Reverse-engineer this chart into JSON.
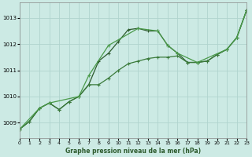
{
  "title": "Graphe pression niveau de la mer (hPa)",
  "bg_color": "#cceae4",
  "grid_color": "#b0d4ce",
  "line_color1": "#2d5a2d",
  "line_color2": "#3a7a3a",
  "line_color3": "#4a9a4a",
  "xmin": 0,
  "xmax": 23,
  "ymin": 1008.4,
  "ymax": 1013.6,
  "yticks": [
    1009,
    1010,
    1011,
    1012,
    1013
  ],
  "xticks": [
    0,
    1,
    2,
    3,
    4,
    5,
    6,
    7,
    8,
    9,
    10,
    11,
    12,
    13,
    14,
    15,
    16,
    17,
    18,
    19,
    20,
    21,
    22,
    23
  ],
  "s1_x": [
    0,
    1,
    2,
    3,
    4,
    5,
    6,
    7,
    8,
    9,
    10,
    11,
    12,
    13,
    14,
    15,
    16,
    17,
    18,
    19,
    20,
    21,
    22,
    23
  ],
  "s1_y": [
    1008.75,
    1009.05,
    1009.55,
    1009.75,
    1009.5,
    1009.8,
    1010.0,
    1010.45,
    1011.35,
    1011.65,
    1012.1,
    1012.55,
    1012.6,
    1012.5,
    1012.5,
    1011.95,
    1011.65,
    1011.3,
    1011.3,
    1011.35,
    1011.6,
    1011.8,
    1012.25,
    1013.3
  ],
  "s2_x": [
    0,
    1,
    2,
    3,
    4,
    5,
    6,
    7,
    8,
    9,
    10,
    11,
    12,
    13,
    14,
    15,
    16,
    17,
    18,
    19,
    20,
    21,
    22,
    23
  ],
  "s2_y": [
    1008.75,
    1009.05,
    1009.55,
    1009.75,
    1009.5,
    1009.8,
    1010.0,
    1010.45,
    1010.45,
    1010.7,
    1011.0,
    1011.25,
    1011.35,
    1011.45,
    1011.5,
    1011.5,
    1011.55,
    1011.3,
    1011.3,
    1011.35,
    1011.6,
    1011.8,
    1012.25,
    1013.3
  ],
  "s3_x": [
    0,
    2,
    3,
    6,
    7,
    9,
    12,
    14,
    15,
    16,
    18,
    21,
    22,
    23
  ],
  "s3_y": [
    1008.75,
    1009.55,
    1009.75,
    1010.0,
    1010.8,
    1011.95,
    1012.6,
    1012.5,
    1011.95,
    1011.65,
    1011.3,
    1011.8,
    1012.25,
    1013.3
  ]
}
